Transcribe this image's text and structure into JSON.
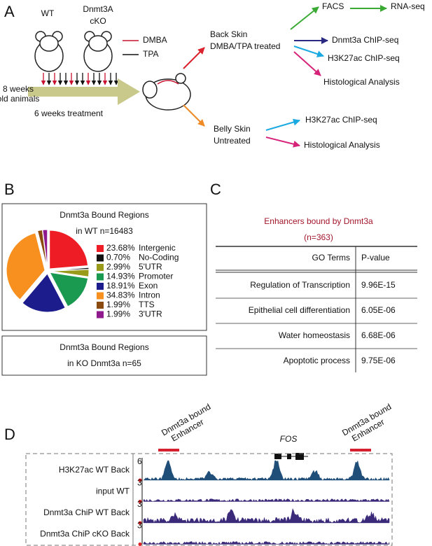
{
  "panel_a": {
    "label": "A",
    "wt": "WT",
    "cko": [
      "Dnmt3A",
      "cKO"
    ],
    "legend": [
      "DMBA",
      "TPA"
    ],
    "age": [
      "8 weeks",
      "old animals"
    ],
    "duration": "6 weeks treatment",
    "back": [
      "Back Skin",
      "DMBA/TPA treated"
    ],
    "belly": [
      "Belly Skin",
      "Untreated"
    ],
    "back_outputs": [
      "FACS",
      "RNA-seq",
      "Dnmt3a ChIP-seq",
      "H3K27ac ChIP-seq",
      "Histological Analysis"
    ],
    "belly_outputs": [
      "H3K27ac ChIP-seq",
      "Histological Analysis"
    ]
  },
  "panel_b": {
    "label": "B",
    "ko_title": [
      "Dnmt3a Bound Regions",
      "in KO Dnmt3a n=65"
    ]
  },
  "chart_data": {
    "type": "pie",
    "title": [
      "Dnmt3a Bound Regions",
      "in WT n=16483"
    ],
    "categories": [
      "Intergenic",
      "No-Coding",
      "5'UTR",
      "Promoter",
      "Exon",
      "Intron",
      "TTS",
      "3'UTR"
    ],
    "values": [
      23.68,
      0.7,
      2.99,
      14.93,
      18.91,
      34.83,
      1.99,
      1.99
    ],
    "value_labels": [
      "23.68%",
      "0.70%",
      "2.99%",
      "14.93%",
      "18.91%",
      "34.83%",
      "1.99%",
      "1.99%"
    ],
    "colors": [
      "#ee1c24",
      "#111111",
      "#9a9a1a",
      "#1a9a50",
      "#1c1c8c",
      "#f7901e",
      "#8b4a10",
      "#8e1a8e"
    ]
  },
  "panel_c": {
    "label": "C",
    "title": [
      "Enhancers bound by Dnmt3a",
      "(n=363)"
    ],
    "table": {
      "header": [
        "GO Terms",
        "P-value"
      ],
      "rows": [
        [
          "Regulation of Transcription",
          "9.96E-15"
        ],
        [
          "Epithelial cell differentiation",
          "6.05E-06"
        ],
        [
          "Water homeostasis",
          "6.68E-06"
        ],
        [
          "Apoptotic process",
          "9.75E-06"
        ]
      ]
    }
  },
  "panel_d": {
    "label": "D",
    "enhancer_label": [
      "Dnmt3a bound",
      "Enhancer"
    ],
    "gene": "FOS",
    "tracks": [
      {
        "name": "H3K27ac WT  Back",
        "scale": "6"
      },
      {
        "name": "input WT",
        "scale": "3"
      },
      {
        "name": "Dnmt3a ChiP WT Back",
        "scale": "3"
      },
      {
        "name": "Dnmt3a ChiP cKO Back",
        "scale": "3"
      }
    ]
  }
}
